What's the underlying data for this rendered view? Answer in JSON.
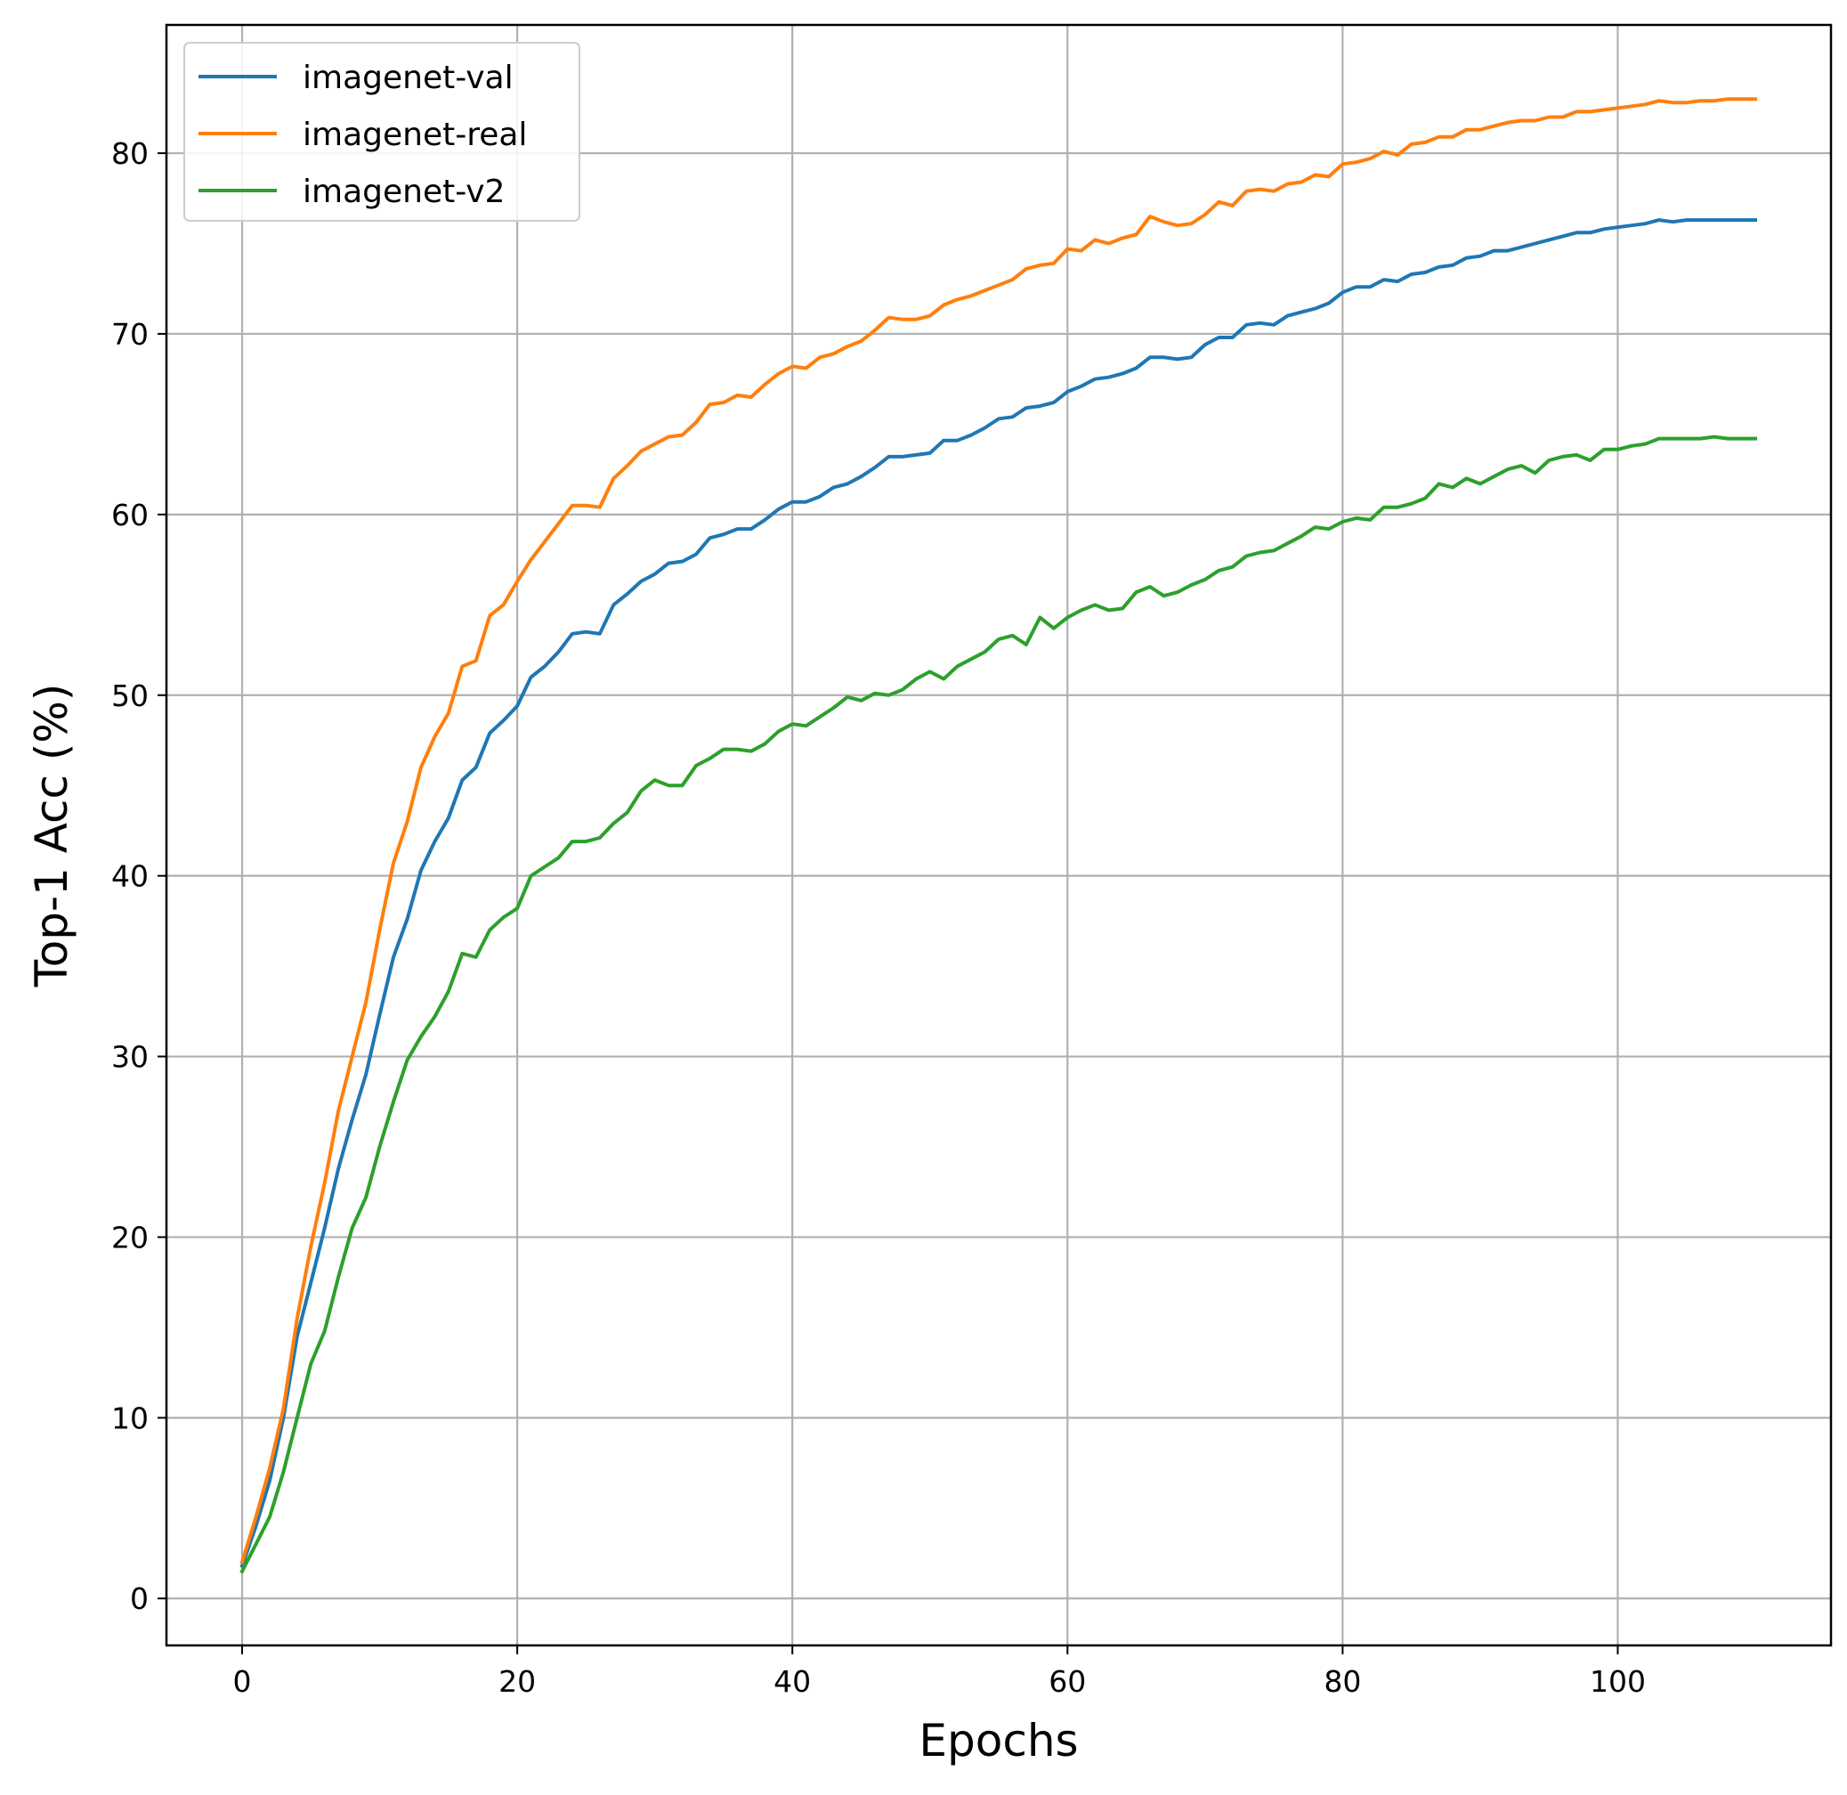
{
  "chart_data": {
    "type": "line",
    "title": "",
    "xlabel": "Epochs",
    "ylabel": "Top-1 Acc (%)",
    "xlim": [
      -5.5,
      115.5
    ],
    "ylim": [
      -2.6,
      87.1
    ],
    "xticks": [
      0,
      20,
      40,
      60,
      80,
      100
    ],
    "yticks": [
      0,
      10,
      20,
      30,
      40,
      50,
      60,
      70,
      80
    ],
    "grid": true,
    "legend_position": "top-left",
    "series": [
      {
        "name": "imagenet-val",
        "color": "#1f77b4",
        "values": [
          1.8,
          4.0,
          6.5,
          10.0,
          14.5,
          17.5,
          20.5,
          23.8,
          26.5,
          29.0,
          32.3,
          35.5,
          37.6,
          40.3,
          41.9,
          43.2,
          45.3,
          46.0,
          47.9,
          48.6,
          49.4,
          51.0,
          51.6,
          52.4,
          53.4,
          53.5,
          53.4,
          55.0,
          55.6,
          56.3,
          56.7,
          57.3,
          57.4,
          57.8,
          58.7,
          58.9,
          59.2,
          59.2,
          59.7,
          60.3,
          60.7,
          60.7,
          61.0,
          61.5,
          61.7,
          62.1,
          62.6,
          63.2,
          63.2,
          63.3,
          63.4,
          64.1,
          64.1,
          64.4,
          64.8,
          65.3,
          65.4,
          65.9,
          66.0,
          66.2,
          66.8,
          67.1,
          67.5,
          67.6,
          67.8,
          68.1,
          68.7,
          68.7,
          68.6,
          68.7,
          69.4,
          69.8,
          69.8,
          70.5,
          70.6,
          70.5,
          71.0,
          71.2,
          71.4,
          71.7,
          72.3,
          72.6,
          72.6,
          73.0,
          72.9,
          73.3,
          73.4,
          73.7,
          73.8,
          74.2,
          74.3,
          74.6,
          74.6,
          74.8,
          75.0,
          75.2,
          75.4,
          75.6,
          75.6,
          75.8,
          75.9,
          76.0,
          76.1,
          76.3,
          76.2,
          76.3,
          76.3,
          76.3,
          76.3,
          76.3,
          76.3
        ]
      },
      {
        "name": "imagenet-real",
        "color": "#ff7f0e",
        "values": [
          2.0,
          4.5,
          7.2,
          10.5,
          15.5,
          19.5,
          23.0,
          27.0,
          30.0,
          33.0,
          37.0,
          40.7,
          43.0,
          46.0,
          47.7,
          49.0,
          51.6,
          51.9,
          54.4,
          55.0,
          56.3,
          57.5,
          58.5,
          59.5,
          60.5,
          60.5,
          60.4,
          62.0,
          62.7,
          63.5,
          63.9,
          64.3,
          64.4,
          65.1,
          66.1,
          66.2,
          66.6,
          66.5,
          67.2,
          67.8,
          68.2,
          68.1,
          68.7,
          68.9,
          69.3,
          69.6,
          70.2,
          70.9,
          70.8,
          70.8,
          71.0,
          71.6,
          71.9,
          72.1,
          72.4,
          72.7,
          73.0,
          73.6,
          73.8,
          73.9,
          74.7,
          74.6,
          75.2,
          75.0,
          75.3,
          75.5,
          76.5,
          76.2,
          76.0,
          76.1,
          76.6,
          77.3,
          77.1,
          77.9,
          78.0,
          77.9,
          78.3,
          78.4,
          78.8,
          78.7,
          79.4,
          79.5,
          79.7,
          80.1,
          79.9,
          80.5,
          80.6,
          80.9,
          80.9,
          81.3,
          81.3,
          81.5,
          81.7,
          81.8,
          81.8,
          82.0,
          82.0,
          82.3,
          82.3,
          82.4,
          82.5,
          82.6,
          82.7,
          82.9,
          82.8,
          82.8,
          82.9,
          82.9,
          83.0,
          83.0,
          83.0
        ]
      },
      {
        "name": "imagenet-v2",
        "color": "#2ca02c",
        "values": [
          1.5,
          3.0,
          4.5,
          7.0,
          10.0,
          13.0,
          14.8,
          17.8,
          20.5,
          22.2,
          25.0,
          27.5,
          29.8,
          31.1,
          32.2,
          33.6,
          35.7,
          35.5,
          37.0,
          37.7,
          38.2,
          40.0,
          40.5,
          41.0,
          41.9,
          41.9,
          42.1,
          42.9,
          43.5,
          44.7,
          45.3,
          45.0,
          45.0,
          46.1,
          46.5,
          47.0,
          47.0,
          46.9,
          47.3,
          48.0,
          48.4,
          48.3,
          48.8,
          49.3,
          49.9,
          49.7,
          50.1,
          50.0,
          50.3,
          50.9,
          51.3,
          50.9,
          51.6,
          52.0,
          52.4,
          53.1,
          53.3,
          52.8,
          54.3,
          53.7,
          54.3,
          54.7,
          55.0,
          54.7,
          54.8,
          55.7,
          56.0,
          55.5,
          55.7,
          56.1,
          56.4,
          56.9,
          57.1,
          57.7,
          57.9,
          58.0,
          58.4,
          58.8,
          59.3,
          59.2,
          59.6,
          59.8,
          59.7,
          60.4,
          60.4,
          60.6,
          60.9,
          61.7,
          61.5,
          62.0,
          61.7,
          62.1,
          62.5,
          62.7,
          62.3,
          63.0,
          63.2,
          63.3,
          63.0,
          63.6,
          63.6,
          63.8,
          63.9,
          64.2,
          64.2,
          64.2,
          64.2,
          64.3,
          64.2,
          64.2,
          64.2
        ]
      }
    ]
  }
}
